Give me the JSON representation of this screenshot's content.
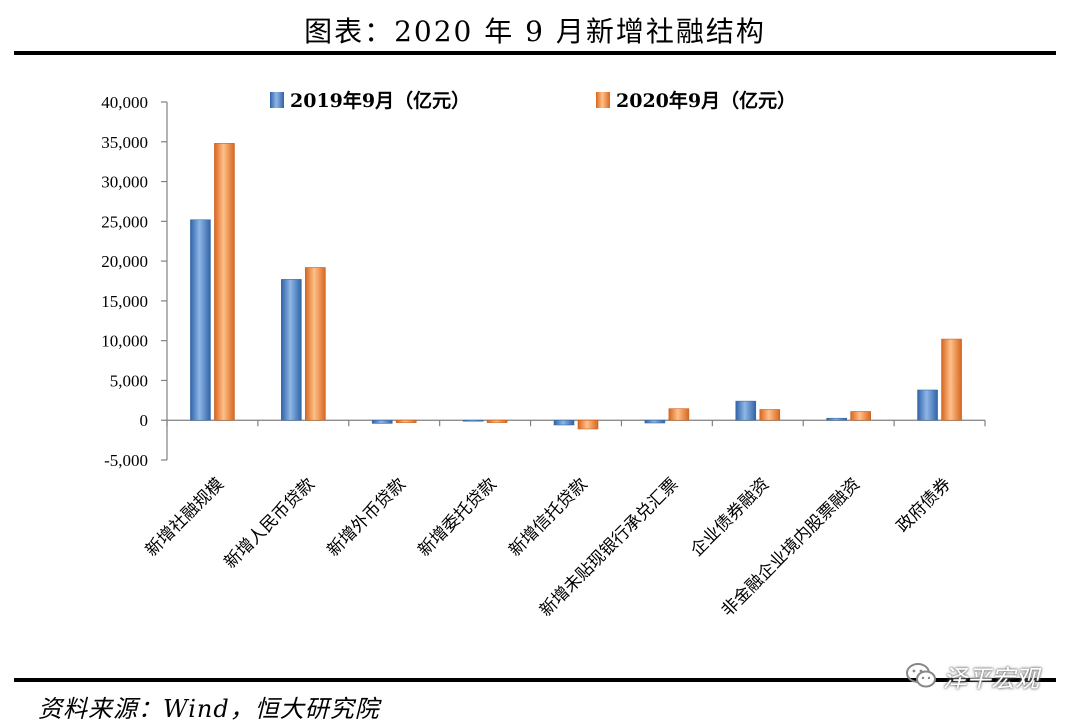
{
  "header": {
    "title": "图表：2020 年 9 月新增社融结构"
  },
  "footer": {
    "source": "资料来源：Wind，恒大研究院",
    "watermark": "泽平宏观",
    "watermark_icon": "wechat-icon"
  },
  "colors": {
    "series_2019": "#4a7fc1",
    "series_2020": "#f08a3c",
    "axis": "#808080"
  },
  "chart_data": {
    "type": "bar",
    "title": "",
    "xlabel": "",
    "ylabel": "",
    "ylim": [
      -5000,
      40000
    ],
    "yticks": [
      40000,
      35000,
      30000,
      25000,
      20000,
      15000,
      10000,
      5000,
      0,
      -5000
    ],
    "ytick_labels": [
      "40,000",
      "35,000",
      "30,000",
      "25,000",
      "20,000",
      "15,000",
      "10,000",
      "5,000",
      "0",
      "-5,000"
    ],
    "grid": false,
    "legend_position": "top",
    "categories": [
      "新增社融规模",
      "新增人民币贷款",
      "新增外币贷款",
      "新增委托贷款",
      "新增信托贷款",
      "新增未贴现银行承兑汇票",
      "企业债券融资",
      "非金融企业境内股票融资",
      "政府债券"
    ],
    "series": [
      {
        "name": "2019年9月（亿元）",
        "values": [
          25200,
          17700,
          -400,
          -50,
          -600,
          -350,
          2400,
          250,
          3800
        ]
      },
      {
        "name": "2020年9月（亿元）",
        "values": [
          34800,
          19200,
          -300,
          -300,
          -1100,
          1450,
          1350,
          1100,
          10200
        ]
      }
    ]
  }
}
